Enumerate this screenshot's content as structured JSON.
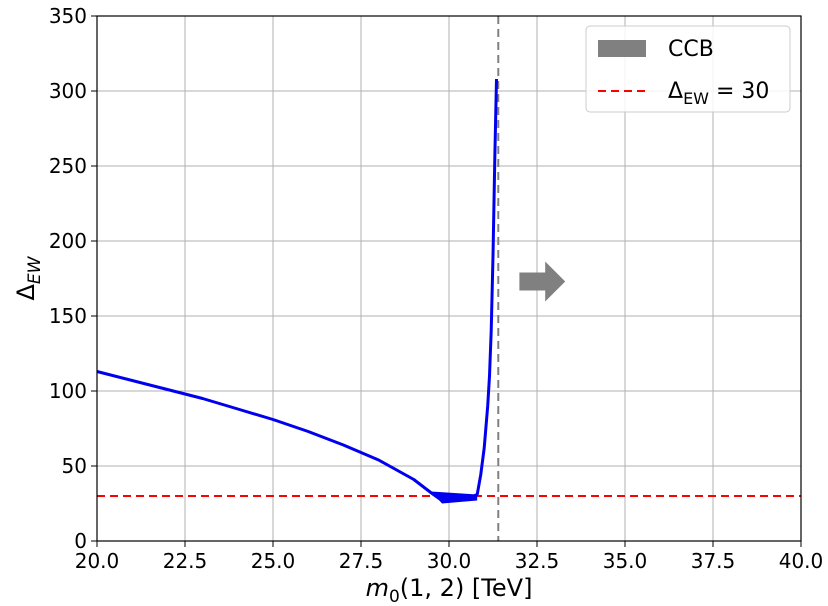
{
  "chart_data": {
    "type": "line",
    "title": "",
    "xlabel": {
      "base": "m",
      "sub": "0",
      "rest": "(1, 2) [TeV]"
    },
    "ylabel": {
      "base": "Δ",
      "sub": "EW"
    },
    "xlim": [
      20.0,
      40.0
    ],
    "ylim": [
      0,
      350
    ],
    "xticks": [
      "20.0",
      "22.5",
      "25.0",
      "27.5",
      "30.0",
      "32.5",
      "35.0",
      "37.5",
      "40.0"
    ],
    "xtick_values": [
      20.0,
      22.5,
      25.0,
      27.5,
      30.0,
      32.5,
      35.0,
      37.5,
      40.0
    ],
    "yticks": [
      "0",
      "50",
      "100",
      "150",
      "200",
      "250",
      "300",
      "350"
    ],
    "ytick_values": [
      0,
      50,
      100,
      150,
      200,
      250,
      300,
      350
    ],
    "grid": true,
    "legend_position": "top-right",
    "series": [
      {
        "color": "#0000ee",
        "x": [
          20.0,
          21.0,
          22.0,
          23.0,
          24.0,
          25.0,
          26.0,
          27.0,
          28.0,
          29.0,
          29.5,
          29.8,
          30.0,
          30.3,
          30.6,
          30.8,
          30.9,
          31.0,
          31.1,
          31.15,
          31.2,
          31.25,
          31.3,
          31.35
        ],
        "y": [
          113,
          107,
          101,
          95,
          88,
          81,
          73,
          64,
          54,
          41,
          32,
          27,
          28,
          28,
          29,
          31,
          44,
          62,
          90,
          110,
          140,
          190,
          255,
          308
        ]
      }
    ],
    "reference_line": {
      "y": 30,
      "color": "#ff0000",
      "style": "dashed"
    },
    "ccb_boundary": {
      "x": 31.4,
      "color": "#808080",
      "style": "dashed"
    },
    "arrow": {
      "x_start": 32.0,
      "x_end": 33.3,
      "y": 173,
      "color": "#808080"
    },
    "legend": [
      {
        "label": "CCB",
        "swatch": "patch",
        "color": "#808080"
      },
      {
        "label_base": "Δ",
        "label_sub": "EW",
        "label_rest": " = 30",
        "swatch": "dashed-line",
        "color": "#ff0000"
      }
    ]
  }
}
